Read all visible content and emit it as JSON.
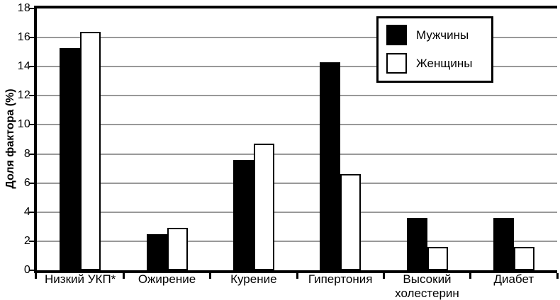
{
  "chart_data": {
    "type": "bar",
    "title": "",
    "ylabel": "Доля фактора (%)",
    "xlabel": "",
    "categories": [
      "Низкий УКП*",
      "Ожирение",
      "Курение",
      "Гипертония",
      "Высокий холестерин",
      "Диабет"
    ],
    "series": [
      {
        "name": "Мужчины",
        "color": "#000000",
        "values": [
          15.3,
          2.5,
          7.6,
          14.3,
          3.6,
          3.6
        ]
      },
      {
        "name": "Женщины",
        "color": "#ffffff",
        "values": [
          16.4,
          2.9,
          8.7,
          6.6,
          1.6,
          1.6
        ]
      }
    ],
    "ylim": [
      0,
      18
    ],
    "ytick_step": 2,
    "grid": true,
    "gridline_color": "#999999",
    "axis_color": "#000000",
    "legend_position": "top-right"
  }
}
